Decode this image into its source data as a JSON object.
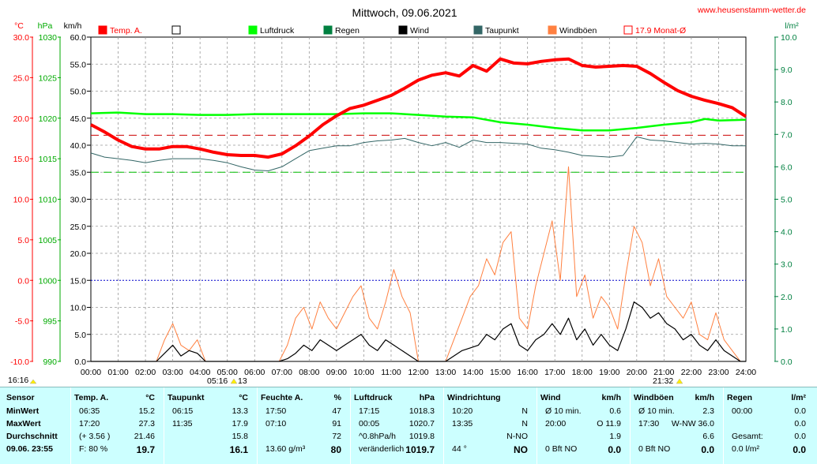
{
  "title": "Mittwoch, 09.06.2021",
  "site": "www.heusenstamm-wetter.de",
  "units": {
    "temp": "°C",
    "press": "hPa",
    "wind": "km/h",
    "rain": "l/m²"
  },
  "legend": [
    {
      "label": "Temp. A.",
      "color": "#ff0000",
      "filled": true
    },
    {
      "label": "",
      "color": "#000000",
      "filled": false
    },
    {
      "label": "Luftdruck",
      "color": "#00ff00",
      "filled": true
    },
    {
      "label": "Regen",
      "color": "#008040",
      "filled": true
    },
    {
      "label": "Wind",
      "color": "#000000",
      "filled": true
    },
    {
      "label": "Taupunkt",
      "color": "#336666",
      "filled": true
    },
    {
      "label": "Windböen",
      "color": "#ff8040",
      "filled": true
    },
    {
      "label": "17.9 Monat-Ø",
      "color": "#ff0000",
      "filled": false
    }
  ],
  "markers": {
    "left": "16:16",
    "sunrise": "05:16",
    "m13": "13",
    "sunset": "21:32"
  },
  "chart_data": {
    "type": "line",
    "xlabel": "",
    "ylabel": "",
    "x_ticks": [
      "00:00",
      "01:00",
      "02:00",
      "03:00",
      "04:00",
      "05:00",
      "06:00",
      "07:00",
      "08:00",
      "09:00",
      "10:00",
      "11:00",
      "12:00",
      "13:00",
      "14:00",
      "15:00",
      "16:00",
      "17:00",
      "18:00",
      "19:00",
      "20:00",
      "21:00",
      "22:00",
      "23:00",
      "24:00"
    ],
    "temp_ticks": [
      "30.0",
      "25.0",
      "20.0",
      "15.0",
      "10.0",
      "5.0",
      "0.0",
      "-5.0",
      "-10.0"
    ],
    "press_ticks": [
      "1030",
      "1025",
      "1020",
      "1015",
      "1010",
      "1005",
      "1000",
      "995",
      "990"
    ],
    "wind_ticks": [
      "60.0",
      "55.0",
      "50.0",
      "45.0",
      "40.0",
      "35.0",
      "30.0",
      "25.0",
      "20.0",
      "15.0",
      "10.0",
      "5.0",
      "0.0"
    ],
    "rain_ticks": [
      "10.0",
      "9.0",
      "8.0",
      "7.0",
      "6.0",
      "5.0",
      "4.0",
      "3.0",
      "2.0",
      "1.0",
      "0.0"
    ],
    "temp_range": [
      -10,
      30
    ],
    "wind_range": [
      0,
      60
    ],
    "press_range": [
      990,
      1030
    ],
    "rain_range": [
      0,
      10
    ],
    "month_avg_temp": 17.9,
    "series": [
      {
        "name": "Temp. A.",
        "color": "#ff0000",
        "axis": "temp",
        "x": [
          0,
          0.5,
          1,
          1.5,
          2,
          2.5,
          3,
          3.5,
          4,
          4.5,
          5,
          5.5,
          6,
          6.5,
          7,
          7.5,
          8,
          8.5,
          9,
          9.5,
          10,
          10.5,
          11,
          11.5,
          12,
          12.5,
          13,
          13.5,
          14,
          14.5,
          15,
          15.5,
          16,
          16.5,
          17,
          17.5,
          18,
          18.5,
          19,
          19.5,
          20,
          20.5,
          21,
          21.5,
          22,
          22.5,
          23,
          23.5,
          24
        ],
        "y": [
          19.2,
          18.3,
          17.3,
          16.5,
          16.2,
          16.2,
          16.5,
          16.5,
          16.2,
          15.8,
          15.5,
          15.4,
          15.4,
          15.2,
          15.6,
          16.6,
          17.8,
          19.2,
          20.3,
          21.2,
          21.6,
          22.2,
          22.8,
          23.7,
          24.7,
          25.3,
          25.6,
          25.2,
          26.5,
          25.8,
          27.3,
          26.8,
          26.7,
          27.0,
          27.2,
          27.3,
          26.5,
          26.3,
          26.4,
          26.5,
          26.4,
          25.5,
          24.4,
          23.4,
          22.7,
          22.2,
          21.8,
          21.3,
          20.2
        ]
      },
      {
        "name": "Taupunkt",
        "color": "#336666",
        "axis": "temp",
        "x": [
          0,
          0.5,
          1,
          1.5,
          2,
          2.5,
          3,
          3.5,
          4,
          4.5,
          5,
          5.5,
          6,
          6.5,
          7,
          7.5,
          8,
          8.5,
          9,
          9.5,
          10,
          10.5,
          11,
          11.5,
          12,
          12.5,
          13,
          13.5,
          14,
          14.5,
          15,
          15.5,
          16,
          16.5,
          17,
          17.5,
          18,
          18.5,
          19,
          19.5,
          20,
          20.5,
          21,
          21.5,
          22,
          22.5,
          23,
          23.5,
          24
        ],
        "y": [
          15.7,
          15.2,
          15.0,
          14.8,
          14.5,
          14.8,
          15.0,
          15.0,
          15.0,
          14.8,
          14.5,
          14.0,
          13.6,
          13.5,
          14.0,
          15.0,
          16.0,
          16.3,
          16.6,
          16.6,
          17.0,
          17.2,
          17.3,
          17.5,
          17.0,
          16.6,
          17.0,
          16.4,
          17.3,
          17.0,
          17.0,
          16.9,
          16.8,
          16.3,
          16.1,
          15.8,
          15.4,
          15.3,
          15.2,
          15.4,
          17.7,
          17.3,
          17.2,
          17.0,
          16.8,
          16.9,
          16.8,
          16.6,
          16.6
        ]
      },
      {
        "name": "Luftdruck",
        "color": "#00ff00",
        "axis": "press",
        "x": [
          0,
          1,
          2,
          3,
          4,
          5,
          6,
          7,
          8,
          9,
          10,
          11,
          12,
          13,
          14,
          15,
          16,
          17,
          18,
          19,
          20,
          21,
          22,
          22.5,
          23,
          24
        ],
        "y": [
          1020.6,
          1020.7,
          1020.5,
          1020.5,
          1020.4,
          1020.4,
          1020.5,
          1020.5,
          1020.5,
          1020.5,
          1020.6,
          1020.6,
          1020.4,
          1020.2,
          1020.1,
          1019.5,
          1019.2,
          1018.8,
          1018.5,
          1018.5,
          1018.8,
          1019.2,
          1019.5,
          1019.9,
          1019.7,
          1019.8
        ]
      },
      {
        "name": "Wind",
        "color": "#000000",
        "axis": "wind",
        "x": [
          0,
          2.4,
          2.7,
          3.0,
          3.3,
          3.6,
          3.9,
          4.2,
          6.9,
          7.2,
          7.5,
          7.8,
          8.1,
          8.4,
          8.7,
          9.0,
          9.3,
          9.6,
          9.9,
          10.2,
          10.5,
          10.8,
          11.1,
          11.4,
          11.7,
          12.0,
          12.3,
          13.0,
          13.3,
          13.6,
          13.9,
          14.2,
          14.5,
          14.8,
          15.1,
          15.4,
          15.7,
          16.0,
          16.3,
          16.6,
          16.9,
          17.2,
          17.5,
          17.8,
          18.1,
          18.4,
          18.7,
          19.0,
          19.3,
          19.6,
          19.9,
          20.2,
          20.5,
          20.8,
          21.1,
          21.4,
          21.7,
          22.0,
          22.3,
          22.6,
          22.9,
          23.2,
          23.5,
          23.8,
          24
        ],
        "y": [
          0,
          0,
          1.5,
          3,
          1.0,
          2.0,
          1.5,
          0,
          0,
          0.5,
          1.5,
          3,
          2,
          4,
          3,
          2,
          3,
          4,
          5,
          3,
          2,
          4,
          3,
          2,
          1,
          0,
          0,
          0,
          1,
          2,
          2.5,
          3,
          5,
          4,
          6,
          7,
          3,
          2,
          4,
          5,
          7,
          5,
          8,
          4,
          6,
          3,
          5,
          3,
          2,
          6,
          11,
          10,
          8,
          9,
          7,
          6,
          4,
          5,
          3,
          2,
          4,
          2,
          1,
          0,
          0
        ]
      },
      {
        "name": "Windböen",
        "color": "#ff8040",
        "axis": "wind",
        "x": [
          0,
          2.4,
          2.7,
          3.0,
          3.3,
          3.6,
          3.9,
          4.2,
          6.9,
          7.2,
          7.5,
          7.8,
          8.1,
          8.4,
          8.7,
          9.0,
          9.3,
          9.6,
          9.9,
          10.2,
          10.5,
          10.8,
          11.1,
          11.4,
          11.7,
          12.0,
          12.3,
          13.0,
          13.3,
          13.6,
          13.9,
          14.2,
          14.5,
          14.8,
          15.1,
          15.4,
          15.7,
          16.0,
          16.3,
          16.6,
          16.9,
          17.2,
          17.5,
          17.8,
          18.1,
          18.4,
          18.7,
          19.0,
          19.3,
          19.6,
          19.9,
          20.2,
          20.5,
          20.8,
          21.1,
          21.4,
          21.7,
          22.0,
          22.3,
          22.6,
          22.9,
          23.2,
          23.5,
          23.8,
          24
        ],
        "y": [
          0,
          0,
          4,
          7,
          3,
          2,
          4,
          0,
          0,
          3,
          8,
          10,
          6,
          11,
          8,
          6,
          9,
          12,
          14,
          8,
          6,
          11,
          17,
          12,
          9,
          0,
          0,
          0,
          4,
          8,
          12,
          14,
          19,
          16,
          22,
          24,
          8,
          6,
          14,
          20,
          26,
          15,
          36,
          12,
          16,
          8,
          12,
          10,
          6,
          16,
          25,
          22,
          14,
          19,
          12,
          10,
          8,
          11,
          5,
          4,
          9,
          4,
          2,
          0,
          0
        ]
      }
    ]
  },
  "stats": {
    "columns": [
      {
        "header": "Sensor",
        "unit": "",
        "rows": [
          [
            "MinWert",
            ""
          ],
          [
            "MaxWert",
            ""
          ],
          [
            "Durchschnitt",
            ""
          ],
          [
            "09.06. 23:55",
            ""
          ]
        ]
      },
      {
        "header": "Temp. A.",
        "unit": "°C",
        "rows": [
          [
            "06:35",
            "15.2"
          ],
          [
            "17:20",
            "27.3"
          ],
          [
            "(+ 3.56 )",
            "21.46"
          ],
          [
            "F: 80 %",
            "19.7"
          ]
        ]
      },
      {
        "header": "Taupunkt",
        "unit": "°C",
        "rows": [
          [
            "06:15",
            "13.3"
          ],
          [
            "11:35",
            "17.9"
          ],
          [
            "",
            "15.8"
          ],
          [
            "",
            "16.1"
          ]
        ]
      },
      {
        "header": "Feuchte A.",
        "unit": "%",
        "rows": [
          [
            "17:50",
            "47"
          ],
          [
            "07:10",
            "91"
          ],
          [
            "",
            "72"
          ],
          [
            "13.60 g/m³",
            "80"
          ]
        ]
      },
      {
        "header": "Luftdruck",
        "unit": "hPa",
        "rows": [
          [
            "17:15",
            "1018.3"
          ],
          [
            "00:05",
            "1020.7"
          ],
          [
            "^0.8hPa/h",
            "1019.8"
          ],
          [
            "veränderlich",
            "1019.7"
          ]
        ]
      },
      {
        "header": "Windrichtung",
        "unit": "",
        "rows": [
          [
            "10:20",
            "N"
          ],
          [
            "13:35",
            "N"
          ],
          [
            "",
            "N-NO"
          ],
          [
            "44 °",
            "NO"
          ]
        ]
      },
      {
        "header": "Wind",
        "unit": "km/h",
        "rows": [
          [
            "Ø 10 min.",
            "0.6"
          ],
          [
            "20:00",
            "O 11.9"
          ],
          [
            "",
            "1.9"
          ],
          [
            "0 Bft NO",
            "0.0"
          ]
        ]
      },
      {
        "header": "Windböen",
        "unit": "km/h",
        "rows": [
          [
            "Ø 10 min.",
            "2.3"
          ],
          [
            "17:30",
            "W-NW 36.0"
          ],
          [
            "",
            "6.6"
          ],
          [
            "0 Bft NO",
            "0.0"
          ]
        ]
      },
      {
        "header": "Regen",
        "unit": "l/m²",
        "rows": [
          [
            "00:00",
            "0.0"
          ],
          [
            "",
            "0.0"
          ],
          [
            "Gesamt:",
            "0.0"
          ],
          [
            "0.0 l/m²",
            "0.0"
          ]
        ]
      }
    ]
  }
}
